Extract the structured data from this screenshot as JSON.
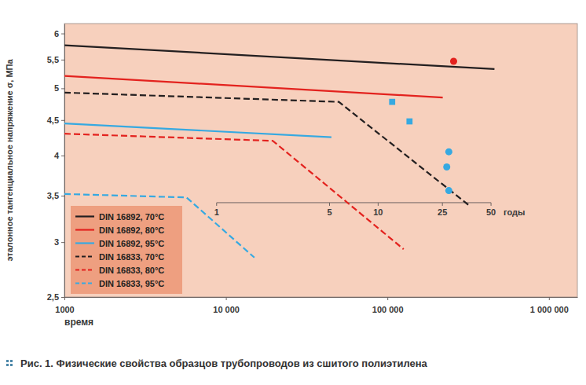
{
  "chart_data": {
    "type": "line",
    "title": "Рис. 1. Физические свойства образцов трубопроводов из сшитого полиэтилена",
    "xlabel": "время",
    "ylabel": "эталонное тангенциальное напряжение σ, МПа",
    "log": true,
    "legend": "lower left",
    "xlim": [
      1000,
      1500000
    ],
    "ylim": [
      2.5,
      6.2
    ],
    "xticks": [
      {
        "value": 1000,
        "label": "1000"
      },
      {
        "value": 10000,
        "label": "10 000"
      },
      {
        "value": 100000,
        "label": "100 000"
      },
      {
        "value": 1000000,
        "label": "1 000 000"
      }
    ],
    "yticks": [
      {
        "value": 2.5,
        "label": "2,5"
      },
      3,
      {
        "value": 3.5,
        "label": "3,5"
      },
      4,
      {
        "value": 4.5,
        "label": "4,5"
      },
      5,
      {
        "value": 5.5,
        "label": "5,5"
      },
      6
    ],
    "x2label": "годы",
    "x2ticks": [
      {
        "value": 8760,
        "label": "1"
      },
      {
        "value": 43800,
        "label": "5"
      },
      {
        "value": 87600,
        "label": "10"
      },
      {
        "value": 219000,
        "label": "25"
      },
      {
        "value": 438000,
        "label": "50"
      }
    ],
    "series": [
      {
        "name": "DIN 16892, 70°C",
        "color": "#231f20",
        "line_style": "solid",
        "x": [
          1000,
          460000
        ],
        "values": [
          5.77,
          5.33
        ]
      },
      {
        "name": "DIN 16892, 80°C",
        "color": "#e3221e",
        "line_style": "solid",
        "x": [
          1000,
          220000
        ],
        "values": [
          5.21,
          4.85
        ]
      },
      {
        "name": "DIN 16892, 95°C",
        "color": "#36a9e1",
        "line_style": "solid",
        "x": [
          1000,
          45000
        ],
        "values": [
          4.45,
          4.25
        ]
      },
      {
        "name": "DIN 16833, 70°C",
        "color": "#231f20",
        "line_style": "dashed",
        "x": [
          1000,
          50000,
          325000
        ],
        "values": [
          4.93,
          4.78,
          3.38
        ]
      },
      {
        "name": "DIN 16833, 80°C",
        "color": "#e3221e",
        "line_style": "dashed",
        "x": [
          1000,
          19500,
          126000
        ],
        "values": [
          4.3,
          4.2,
          2.93
        ]
      },
      {
        "name": "DIN 16833, 95°C",
        "color": "#36a9e1",
        "line_style": "dashed",
        "x": [
          1000,
          5700,
          15000
        ],
        "values": [
          3.52,
          3.48,
          2.85
        ]
      },
      {
        "type": "scatter",
        "marker": "circle",
        "color": "#e3221e",
        "x": [
          257000
        ],
        "values": [
          5.47
        ]
      },
      {
        "type": "scatter",
        "marker": "square",
        "color": "#36a9e1",
        "x": [
          107000,
          137000
        ],
        "values": [
          4.78,
          4.48
        ]
      },
      {
        "type": "scatter",
        "marker": "circle",
        "color": "#36a9e1",
        "x": [
          240000,
          233000,
          240000
        ],
        "values": [
          4.05,
          3.85,
          3.56
        ]
      }
    ]
  }
}
